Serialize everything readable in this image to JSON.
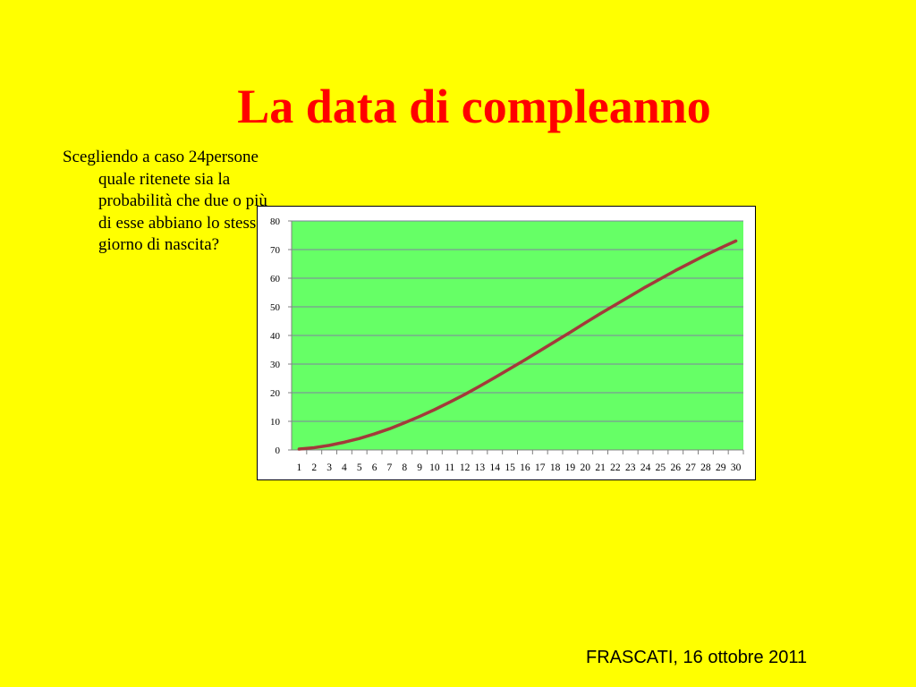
{
  "slide": {
    "title": "La data di compleanno",
    "question": "Scegliendo a caso 24persone quale ritenete sia la probabilità che due o più di esse abbiano lo stesso giorno di nascita?",
    "footer": "FRASCATI, 16 ottobre 2011"
  },
  "chart_data": {
    "type": "line",
    "title": "",
    "xlabel": "",
    "ylabel": "",
    "x": [
      1,
      2,
      3,
      4,
      5,
      6,
      7,
      8,
      9,
      10,
      11,
      12,
      13,
      14,
      15,
      16,
      17,
      18,
      19,
      20,
      21,
      22,
      23,
      24,
      25,
      26,
      27,
      28,
      29,
      30
    ],
    "series": [
      {
        "values": [
          0.3,
          0.8,
          1.6,
          2.7,
          4.0,
          5.6,
          7.4,
          9.5,
          11.7,
          14.1,
          16.7,
          19.4,
          22.3,
          25.3,
          28.4,
          31.5,
          34.7,
          37.9,
          41.1,
          44.4,
          47.6,
          50.7,
          53.8,
          56.9,
          59.8,
          62.7,
          65.4,
          68.1,
          70.6,
          73.0
        ],
        "color": "#a33a3a"
      }
    ],
    "yticks": [
      0,
      10,
      20,
      30,
      40,
      50,
      60,
      70,
      80
    ],
    "ylim": [
      0,
      80
    ],
    "grid": true,
    "legend": "none",
    "plot_background": "#66ff66",
    "gridline_color": "#8080a0"
  }
}
